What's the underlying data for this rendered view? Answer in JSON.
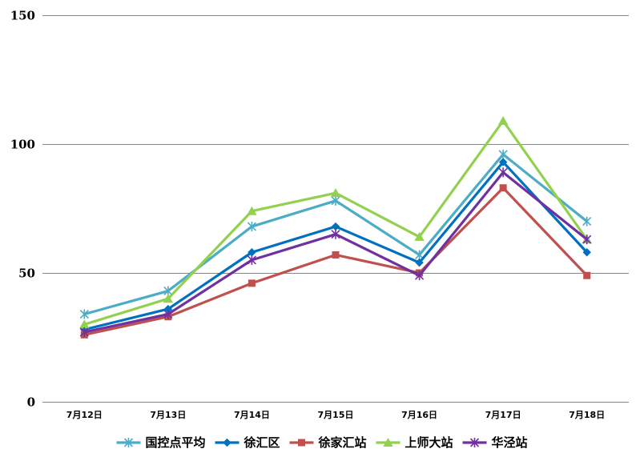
{
  "chart_data": {
    "type": "line",
    "title": "",
    "xlabel": "",
    "ylabel": "",
    "categories": [
      "7月12日",
      "7月13日",
      "7月14日",
      "7月15日",
      "7月16日",
      "7月17日",
      "7月18日"
    ],
    "ylim": [
      0,
      150
    ],
    "yticks": [
      0,
      50,
      100,
      150
    ],
    "grid": true,
    "legend_position": "bottom",
    "series": [
      {
        "name": "国控点平均",
        "color": "#4BACC6",
        "marker": "star",
        "values": [
          34,
          43,
          68,
          78,
          57,
          96,
          70
        ]
      },
      {
        "name": "徐汇区",
        "color": "#0070C0",
        "marker": "diamond",
        "values": [
          28,
          36,
          58,
          68,
          54,
          93,
          58
        ]
      },
      {
        "name": "徐家汇站",
        "color": "#C0504D",
        "marker": "square",
        "values": [
          26,
          33,
          46,
          57,
          50,
          83,
          49
        ]
      },
      {
        "name": "上师大站",
        "color": "#92D050",
        "marker": "triangle",
        "values": [
          30,
          40,
          74,
          81,
          64,
          109,
          63
        ]
      },
      {
        "name": "华泾站",
        "color": "#7030A0",
        "marker": "star",
        "values": [
          27,
          34,
          55,
          65,
          49,
          89,
          63
        ]
      }
    ]
  }
}
